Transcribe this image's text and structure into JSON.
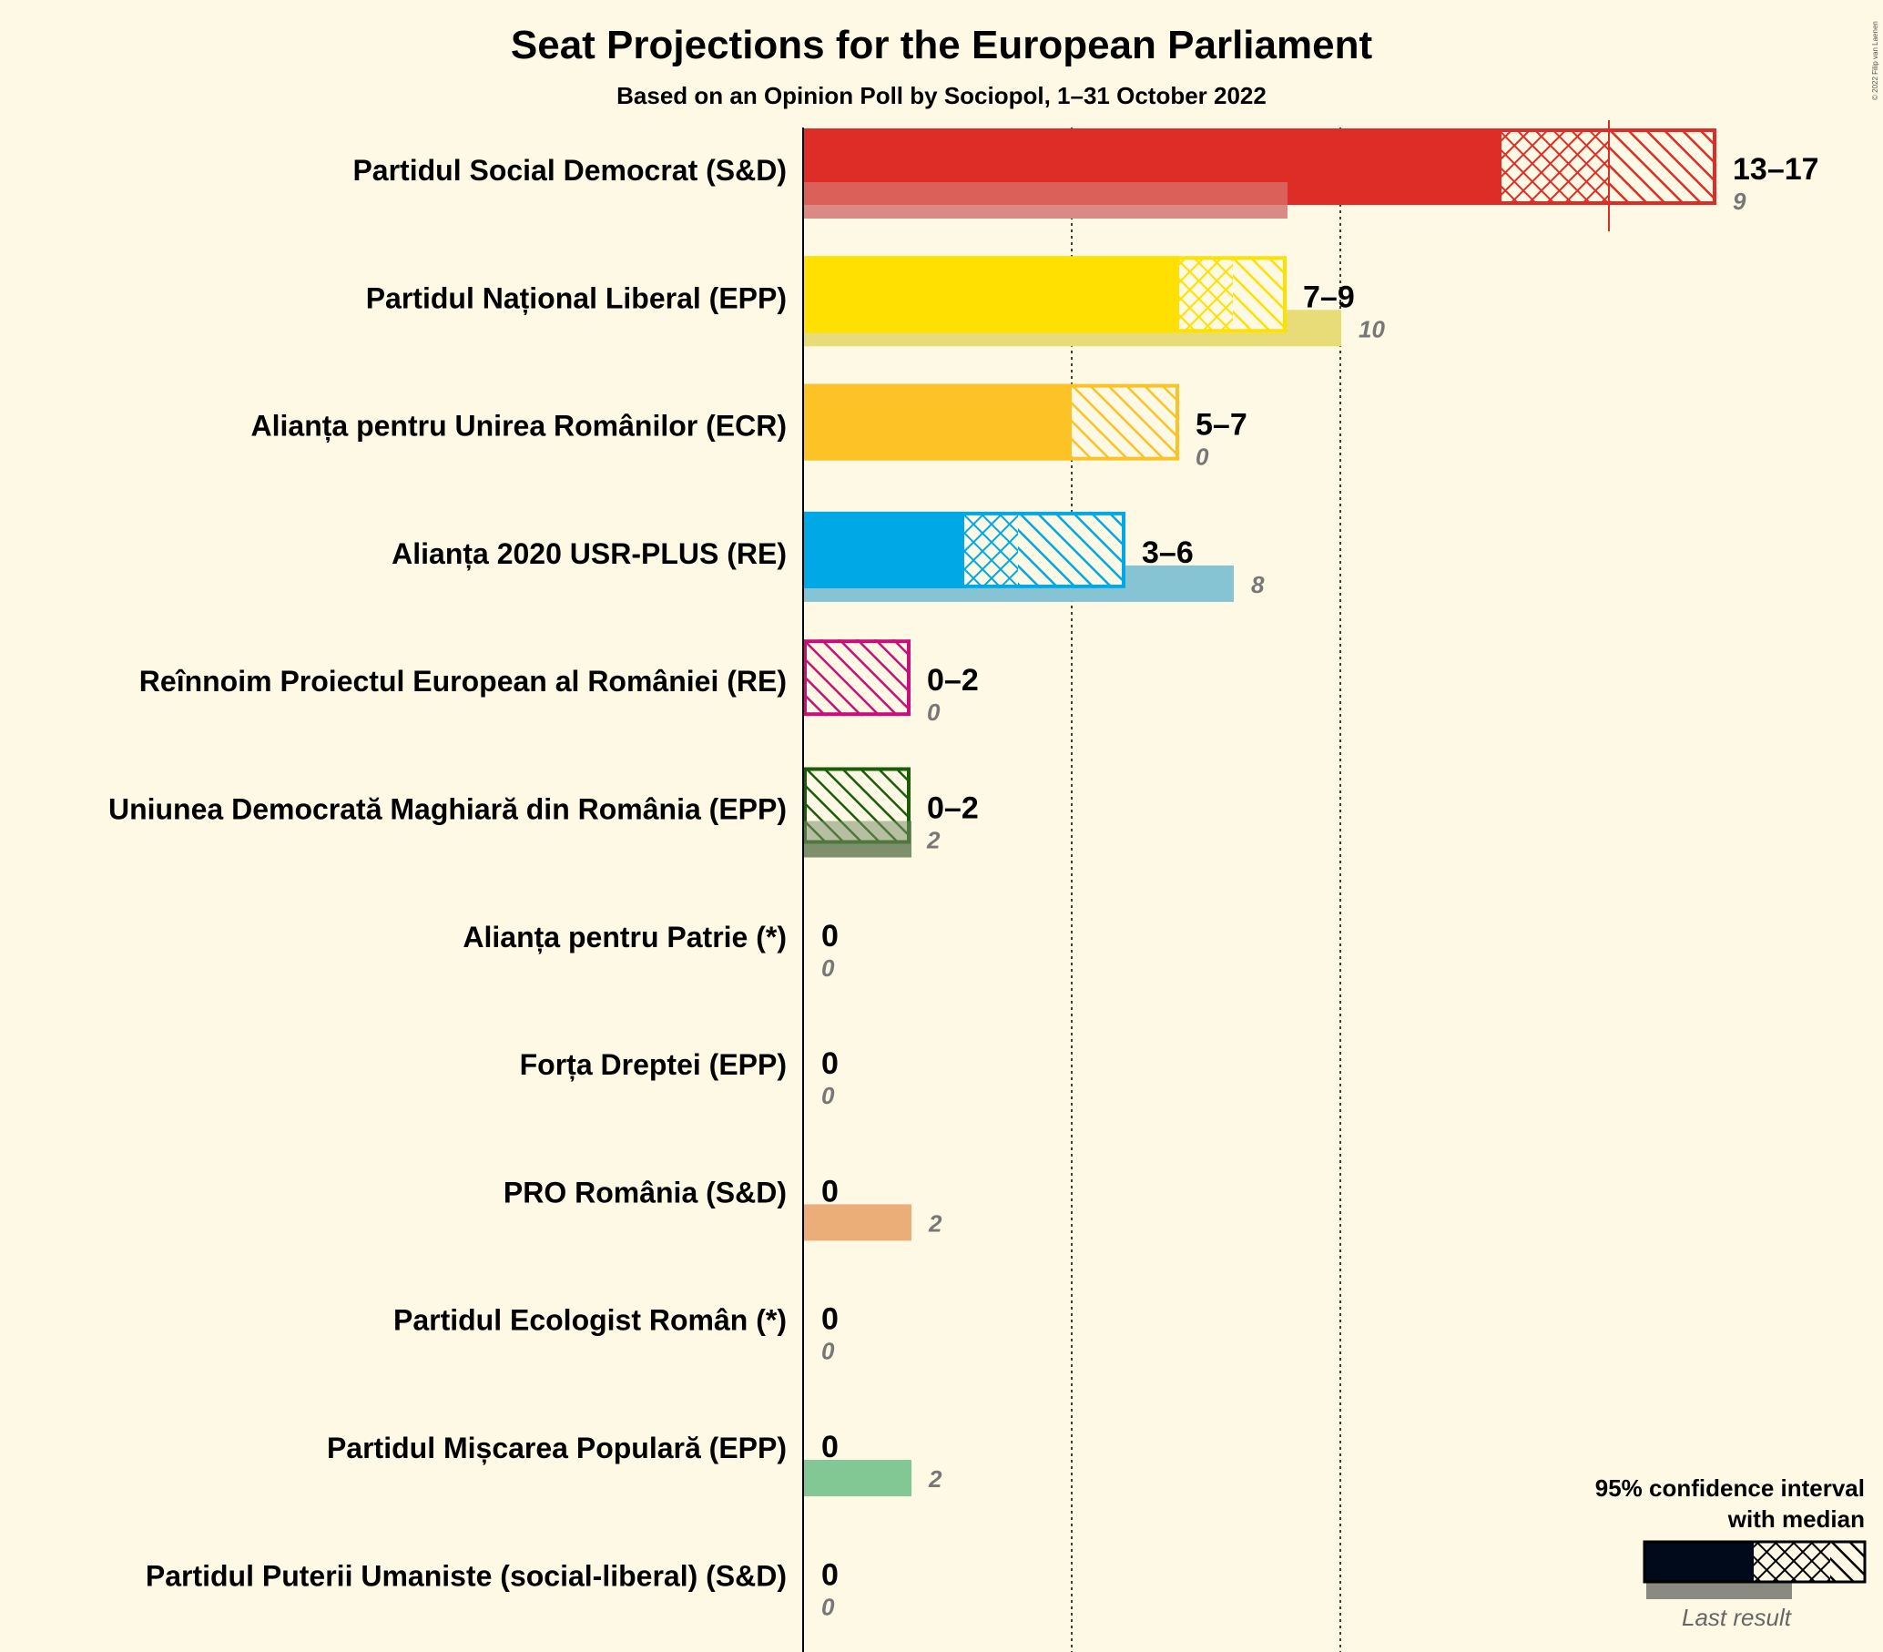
{
  "chart_data": {
    "type": "bar",
    "title": "Seat Projections for the European Parliament",
    "subtitle": "Based on an Opinion Poll by Sociopol, 1–31 October 2022",
    "copyright": "© 2022 Filip van Laenen",
    "x_range": [
      0,
      17
    ],
    "gridlines": [
      5,
      10
    ],
    "majority_marker": 15,
    "series": [
      {
        "party": "Partidul Social Democrat (S&D)",
        "range_label": "13–17",
        "low": 13,
        "q_low": 13,
        "median": 15,
        "high": 17,
        "last": 9,
        "last_label": "9",
        "color": "#de2d26",
        "last_color": "#d98b85"
      },
      {
        "party": "Partidul Național Liberal (EPP)",
        "range_label": "7–9",
        "low": 7,
        "q_low": 7,
        "median": 8,
        "high": 9,
        "last": 10,
        "last_label": "10",
        "color": "#ffe000",
        "last_color": "#e8dc78"
      },
      {
        "party": "Alianța pentru Unirea Românilor (ECR)",
        "range_label": "5–7",
        "low": 5,
        "q_low": 5,
        "median": 5,
        "high": 7,
        "last": 0,
        "last_label": "0",
        "color": "#fcc226",
        "last_color": "#e0c070"
      },
      {
        "party": "Alianța 2020 USR-PLUS (RE)",
        "range_label": "3–6",
        "low": 3,
        "q_low": 3,
        "median": 4,
        "high": 6,
        "last": 8,
        "last_label": "8",
        "color": "#00a8e6",
        "last_color": "#86c4d4"
      },
      {
        "party": "Reînnoim Proiectul European al României (RE)",
        "range_label": "0–2",
        "low": 0,
        "q_low": 0,
        "median": 0,
        "high": 2,
        "last": 0,
        "last_label": "0",
        "color": "#c8107a",
        "last_color": "#c8107a"
      },
      {
        "party": "Uniunea Democrată Maghiară din România (EPP)",
        "range_label": "0–2",
        "low": 0,
        "q_low": 0,
        "median": 0,
        "high": 2,
        "last": 2,
        "last_label": "2",
        "color": "#1a5c08",
        "last_color": "#7e8f6c"
      },
      {
        "party": "Alianța pentru Patrie (*)",
        "range_label": "0",
        "low": 0,
        "q_low": 0,
        "median": 0,
        "high": 0,
        "last": 0,
        "last_label": "0",
        "color": "#555555",
        "last_color": "#999999"
      },
      {
        "party": "Forța Dreptei (EPP)",
        "range_label": "0",
        "low": 0,
        "q_low": 0,
        "median": 0,
        "high": 0,
        "last": 0,
        "last_label": "0",
        "color": "#555555",
        "last_color": "#999999"
      },
      {
        "party": "PRO România (S&D)",
        "range_label": "0",
        "low": 0,
        "q_low": 0,
        "median": 0,
        "high": 0,
        "last": 2,
        "last_label": "2",
        "color": "#555555",
        "last_color": "#ebae78"
      },
      {
        "party": "Partidul Ecologist Român (*)",
        "range_label": "0",
        "low": 0,
        "q_low": 0,
        "median": 0,
        "high": 0,
        "last": 0,
        "last_label": "0",
        "color": "#555555",
        "last_color": "#999999"
      },
      {
        "party": "Partidul Mișcarea Populară (EPP)",
        "range_label": "0",
        "low": 0,
        "q_low": 0,
        "median": 0,
        "high": 0,
        "last": 2,
        "last_label": "2",
        "color": "#555555",
        "last_color": "#82c894"
      },
      {
        "party": "Partidul Puterii Umaniste (social-liberal) (S&D)",
        "range_label": "0",
        "low": 0,
        "q_low": 0,
        "median": 0,
        "high": 0,
        "last": 0,
        "last_label": "0",
        "color": "#555555",
        "last_color": "#999999"
      }
    ],
    "legend": {
      "line1": "95% confidence interval",
      "line2": "with median",
      "last_result": "Last result",
      "placement": "bottom-right"
    }
  }
}
